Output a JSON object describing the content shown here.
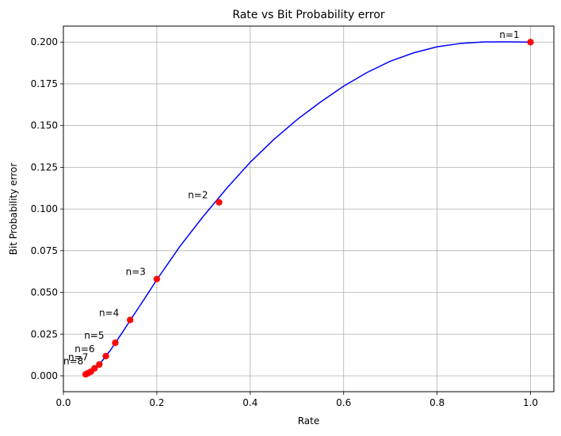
{
  "chart_data": {
    "type": "line",
    "title": "Rate vs Bit Probability error",
    "xlabel": "Rate",
    "ylabel": "Bit Probability error",
    "xlim": [
      0.0,
      1.05
    ],
    "ylim": [
      -0.0095,
      0.2096
    ],
    "grid": true,
    "x_ticks": [
      0.0,
      0.2,
      0.4,
      0.6,
      0.8,
      1.0
    ],
    "x_tick_labels": [
      "0.0",
      "0.2",
      "0.4",
      "0.6",
      "0.8",
      "1.0"
    ],
    "y_ticks": [
      0.0,
      0.025,
      0.05,
      0.075,
      0.1,
      0.125,
      0.15,
      0.175,
      0.2
    ],
    "y_tick_labels": [
      "0.000",
      "0.025",
      "0.050",
      "0.075",
      "0.100",
      "0.125",
      "0.150",
      "0.175",
      "0.200"
    ],
    "series": [
      {
        "type": "line",
        "color": "#0000ff",
        "x": [
          0.0476,
          0.0588,
          0.0769,
          0.1,
          0.125,
          0.15,
          0.175,
          0.2,
          0.225,
          0.25,
          0.3,
          0.35,
          0.4,
          0.45,
          0.5,
          0.55,
          0.6,
          0.65,
          0.7,
          0.75,
          0.8,
          0.85,
          0.9,
          0.95,
          1.0
        ],
        "y": [
          0.0009,
          0.0025,
          0.0068,
          0.0151,
          0.0255,
          0.0362,
          0.0468,
          0.0576,
          0.0677,
          0.0778,
          0.0958,
          0.1125,
          0.128,
          0.1415,
          0.1535,
          0.164,
          0.1736,
          0.1818,
          0.1886,
          0.1936,
          0.1972,
          0.1992,
          0.2001,
          0.2002,
          0.2
        ]
      },
      {
        "type": "scatter",
        "color": "#ff0000",
        "x": [
          1.0,
          0.3333,
          0.2,
          0.1429,
          0.1111,
          0.0909,
          0.0769,
          0.0667,
          0.0588,
          0.0526,
          0.0476
        ],
        "y": [
          0.2,
          0.104,
          0.058,
          0.0335,
          0.0198,
          0.0118,
          0.0068,
          0.0045,
          0.0025,
          0.0016,
          0.0009
        ]
      }
    ],
    "annotations": [
      {
        "text": "n=1",
        "x": 1.0,
        "y": 0.2
      },
      {
        "text": "n=2",
        "x": 0.3333,
        "y": 0.104
      },
      {
        "text": "n=3",
        "x": 0.2,
        "y": 0.058
      },
      {
        "text": "n=4",
        "x": 0.1429,
        "y": 0.0335
      },
      {
        "text": "n=5",
        "x": 0.1111,
        "y": 0.0198
      },
      {
        "text": "n=6",
        "x": 0.0909,
        "y": 0.0118
      },
      {
        "text": "n=7",
        "x": 0.0769,
        "y": 0.0068
      },
      {
        "text": "n=8",
        "x": 0.0667,
        "y": 0.0045
      }
    ]
  }
}
